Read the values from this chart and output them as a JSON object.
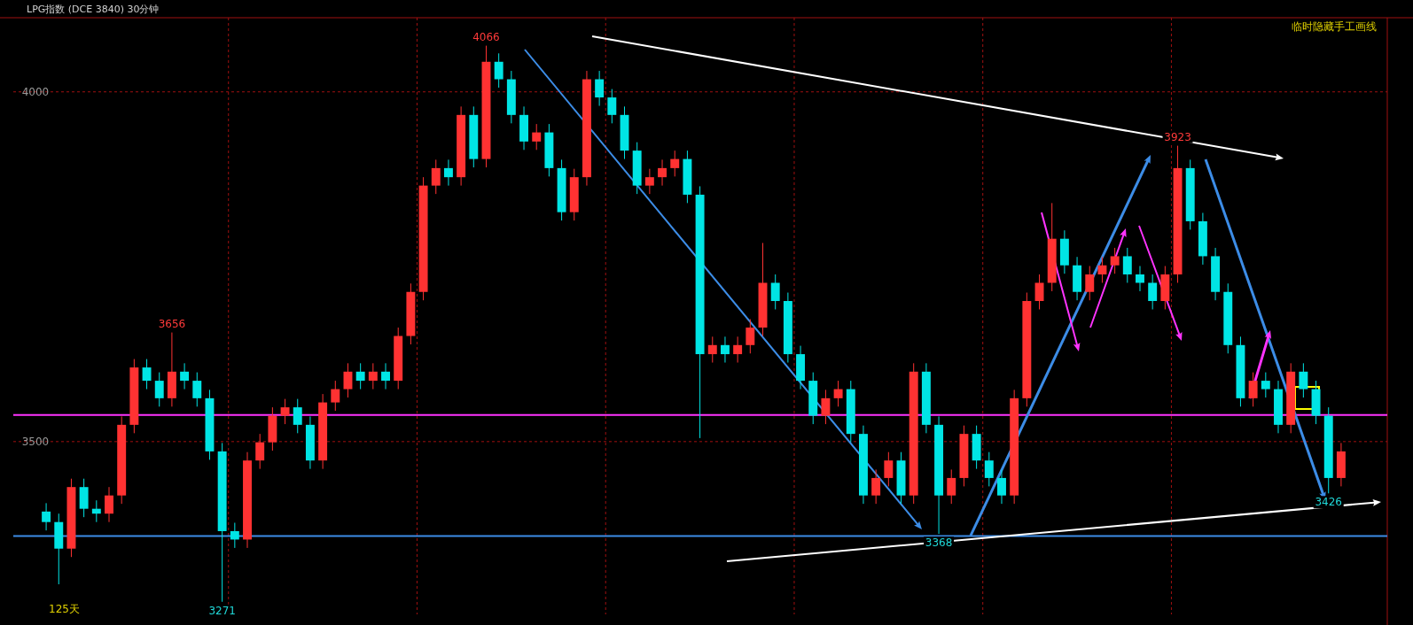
{
  "chart_data": {
    "type": "candlestick",
    "title": "LPG指数 (DCE 3840) 30分钟",
    "categories": [
      null,
      null,
      null,
      null,
      null,
      null,
      null,
      null,
      null,
      null,
      null,
      null,
      null,
      null,
      null,
      null,
      null,
      null,
      null,
      null,
      null,
      null,
      null,
      null,
      null,
      null,
      null,
      null,
      null,
      null,
      null,
      null,
      null,
      null,
      null,
      null,
      null,
      null,
      null,
      null,
      null,
      null,
      null,
      null,
      null,
      null,
      null,
      null,
      null,
      null,
      null,
      null,
      null,
      null,
      null,
      null,
      null,
      null,
      null,
      null,
      null,
      null,
      null,
      null,
      null,
      null,
      null,
      null,
      null,
      null,
      null,
      null,
      null,
      null,
      null,
      null,
      null,
      null,
      null,
      null,
      null,
      null,
      null,
      null,
      null,
      null,
      null,
      null,
      null,
      null,
      null,
      null,
      null,
      null,
      null,
      null,
      null,
      null,
      null,
      null,
      null,
      null,
      null,
      null
    ],
    "ohlc": [
      [
        3400,
        3412,
        3373,
        3385
      ],
      [
        3385,
        3397,
        3296,
        3347
      ],
      [
        3347,
        3447,
        3335,
        3435
      ],
      [
        3435,
        3447,
        3392,
        3404
      ],
      [
        3404,
        3416,
        3385,
        3397
      ],
      [
        3397,
        3435,
        3385,
        3423
      ],
      [
        3423,
        3536,
        3411,
        3524
      ],
      [
        3524,
        3618,
        3512,
        3606
      ],
      [
        3606,
        3618,
        3575,
        3587
      ],
      [
        3587,
        3599,
        3550,
        3562
      ],
      [
        3562,
        3656,
        3550,
        3600
      ],
      [
        3600,
        3612,
        3575,
        3587
      ],
      [
        3587,
        3599,
        3550,
        3562
      ],
      [
        3562,
        3574,
        3474,
        3486
      ],
      [
        3486,
        3498,
        3271,
        3372
      ],
      [
        3372,
        3384,
        3348,
        3360
      ],
      [
        3360,
        3485,
        3348,
        3473
      ],
      [
        3473,
        3511,
        3461,
        3499
      ],
      [
        3499,
        3549,
        3487,
        3537
      ],
      [
        3537,
        3561,
        3525,
        3549
      ],
      [
        3549,
        3561,
        3512,
        3524
      ],
      [
        3524,
        3536,
        3461,
        3473
      ],
      [
        3473,
        3568,
        3461,
        3556
      ],
      [
        3556,
        3587,
        3544,
        3575
      ],
      [
        3575,
        3612,
        3563,
        3600
      ],
      [
        3600,
        3612,
        3575,
        3587
      ],
      [
        3587,
        3612,
        3575,
        3600
      ],
      [
        3600,
        3612,
        3575,
        3587
      ],
      [
        3587,
        3663,
        3575,
        3651
      ],
      [
        3651,
        3726,
        3639,
        3714
      ],
      [
        3714,
        3878,
        3702,
        3866
      ],
      [
        3866,
        3903,
        3854,
        3891
      ],
      [
        3891,
        3903,
        3866,
        3878
      ],
      [
        3878,
        3979,
        3866,
        3967
      ],
      [
        3967,
        3979,
        3892,
        3904
      ],
      [
        3904,
        4066,
        3892,
        4043
      ],
      [
        4043,
        4055,
        4006,
        4018
      ],
      [
        4018,
        4030,
        3955,
        3967
      ],
      [
        3967,
        3979,
        3917,
        3929
      ],
      [
        3929,
        3954,
        3917,
        3942
      ],
      [
        3942,
        3954,
        3879,
        3891
      ],
      [
        3891,
        3903,
        3816,
        3828
      ],
      [
        3828,
        3890,
        3816,
        3878
      ],
      [
        3878,
        4030,
        3866,
        4018
      ],
      [
        4018,
        4030,
        3980,
        3992
      ],
      [
        3992,
        4004,
        3955,
        3967
      ],
      [
        3967,
        3979,
        3904,
        3916
      ],
      [
        3916,
        3928,
        3854,
        3866
      ],
      [
        3866,
        3890,
        3854,
        3878
      ],
      [
        3878,
        3903,
        3866,
        3891
      ],
      [
        3891,
        3916,
        3879,
        3904
      ],
      [
        3904,
        3916,
        3841,
        3853
      ],
      [
        3853,
        3865,
        3505,
        3625
      ],
      [
        3625,
        3650,
        3613,
        3638
      ],
      [
        3638,
        3650,
        3613,
        3625
      ],
      [
        3625,
        3650,
        3613,
        3638
      ],
      [
        3638,
        3675,
        3626,
        3663
      ],
      [
        3663,
        3784,
        3651,
        3727
      ],
      [
        3727,
        3739,
        3689,
        3701
      ],
      [
        3701,
        3713,
        3613,
        3625
      ],
      [
        3625,
        3637,
        3575,
        3587
      ],
      [
        3587,
        3599,
        3525,
        3537
      ],
      [
        3537,
        3574,
        3525,
        3562
      ],
      [
        3562,
        3587,
        3550,
        3575
      ],
      [
        3575,
        3587,
        3499,
        3511
      ],
      [
        3511,
        3523,
        3411,
        3423
      ],
      [
        3423,
        3460,
        3411,
        3448
      ],
      [
        3448,
        3485,
        3436,
        3473
      ],
      [
        3473,
        3485,
        3411,
        3423
      ],
      [
        3423,
        3612,
        3411,
        3600
      ],
      [
        3600,
        3612,
        3512,
        3524
      ],
      [
        3524,
        3536,
        3368,
        3423
      ],
      [
        3423,
        3460,
        3411,
        3448
      ],
      [
        3448,
        3523,
        3436,
        3511
      ],
      [
        3511,
        3523,
        3461,
        3473
      ],
      [
        3473,
        3485,
        3436,
        3448
      ],
      [
        3448,
        3460,
        3411,
        3423
      ],
      [
        3423,
        3574,
        3411,
        3562
      ],
      [
        3562,
        3713,
        3550,
        3701
      ],
      [
        3701,
        3739,
        3689,
        3727
      ],
      [
        3727,
        3841,
        3715,
        3790
      ],
      [
        3790,
        3802,
        3740,
        3752
      ],
      [
        3752,
        3764,
        3702,
        3714
      ],
      [
        3714,
        3751,
        3702,
        3739
      ],
      [
        3739,
        3764,
        3727,
        3752
      ],
      [
        3752,
        3777,
        3740,
        3765
      ],
      [
        3765,
        3777,
        3727,
        3739
      ],
      [
        3739,
        3751,
        3715,
        3727
      ],
      [
        3727,
        3739,
        3689,
        3701
      ],
      [
        3701,
        3751,
        3689,
        3739
      ],
      [
        3739,
        3923,
        3727,
        3891
      ],
      [
        3891,
        3903,
        3803,
        3815
      ],
      [
        3815,
        3827,
        3753,
        3765
      ],
      [
        3765,
        3777,
        3702,
        3714
      ],
      [
        3714,
        3726,
        3626,
        3638
      ],
      [
        3638,
        3650,
        3550,
        3562
      ],
      [
        3562,
        3599,
        3550,
        3587
      ],
      [
        3587,
        3599,
        3563,
        3575
      ],
      [
        3575,
        3587,
        3512,
        3524
      ],
      [
        3524,
        3612,
        3512,
        3600
      ],
      [
        3600,
        3612,
        3563,
        3575
      ],
      [
        3575,
        3587,
        3525,
        3537
      ],
      [
        3537,
        3549,
        3426,
        3448
      ],
      [
        3448,
        3498,
        3436,
        3486
      ]
    ],
    "colors": [
      "#00e5e5",
      "#00e5e5",
      "#ff3232",
      "#00e5e5",
      "#00e5e5",
      "#ff3232",
      "#ff3232",
      "#ff3232",
      "#00e5e5",
      "#00e5e5",
      "#ff3232",
      "#00e5e5",
      "#00e5e5",
      "#00e5e5",
      "#00e5e5",
      "#00e5e5",
      "#ff3232",
      "#ff3232",
      "#ff3232",
      "#ff3232",
      "#00e5e5",
      "#00e5e5",
      "#ff3232",
      "#ff3232",
      "#ff3232",
      "#00e5e5",
      "#ff3232",
      "#00e5e5",
      "#ff3232",
      "#ff3232",
      "#ff3232",
      "#ff3232",
      "#00e5e5",
      "#ff3232",
      "#00e5e5",
      "#ff3232",
      "#00e5e5",
      "#00e5e5",
      "#00e5e5",
      "#ff3232",
      "#00e5e5",
      "#00e5e5",
      "#ff3232",
      "#ff3232",
      "#00e5e5",
      "#00e5e5",
      "#00e5e5",
      "#00e5e5",
      "#ff3232",
      "#ff3232",
      "#ff3232",
      "#00e5e5",
      "#00e5e5",
      "#ff3232",
      "#00e5e5",
      "#ff3232",
      "#ff3232",
      "#ff3232",
      "#00e5e5",
      "#00e5e5",
      "#00e5e5",
      "#00e5e5",
      "#ff3232",
      "#ff3232",
      "#00e5e5",
      "#00e5e5",
      "#ff3232",
      "#ff3232",
      "#00e5e5",
      "#ff3232",
      "#00e5e5",
      "#00e5e5",
      "#ff3232",
      "#ff3232",
      "#00e5e5",
      "#00e5e5",
      "#00e5e5",
      "#ff3232",
      "#ff3232",
      "#ff3232",
      "#ff3232",
      "#00e5e5",
      "#00e5e5",
      "#ff3232",
      "#ff3232",
      "#ff3232",
      "#00e5e5",
      "#00e5e5",
      "#00e5e5",
      "#ff3232",
      "#ff3232",
      "#00e5e5",
      "#00e5e5",
      "#00e5e5",
      "#00e5e5",
      "#00e5e5",
      "#ff3232",
      "#00e5e5",
      "#00e5e5",
      "#ff3232",
      "#00e5e5",
      "#00e5e5",
      "#00e5e5",
      "#ff3232"
    ],
    "ylim": [
      3253,
      4106
    ],
    "yticks": [
      3500,
      4000
    ],
    "grid": true,
    "ref_lines": [
      {
        "axis": "y",
        "value": 3365,
        "color": "#3c8ce6"
      },
      {
        "axis": "y",
        "value": 3538,
        "color": "#ff33ff"
      }
    ],
    "annotations": [
      {
        "text": "4066",
        "y": 4066
      },
      {
        "text": "3656",
        "y": 3656
      },
      {
        "text": "3923",
        "y": 3923
      },
      {
        "text": "3271",
        "y": 3271
      },
      {
        "text": "3368",
        "y": 3368
      },
      {
        "text": "3426",
        "y": 3426
      },
      "临时隐藏手工画线",
      "125天"
    ]
  }
}
